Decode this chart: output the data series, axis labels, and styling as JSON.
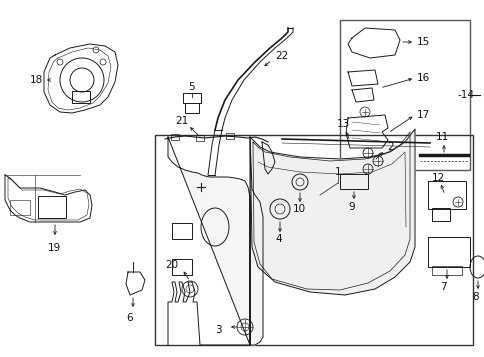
{
  "bg_color": "#ffffff",
  "line_color": "#1a1a1a",
  "fig_width": 4.85,
  "fig_height": 3.57,
  "dpi": 100
}
